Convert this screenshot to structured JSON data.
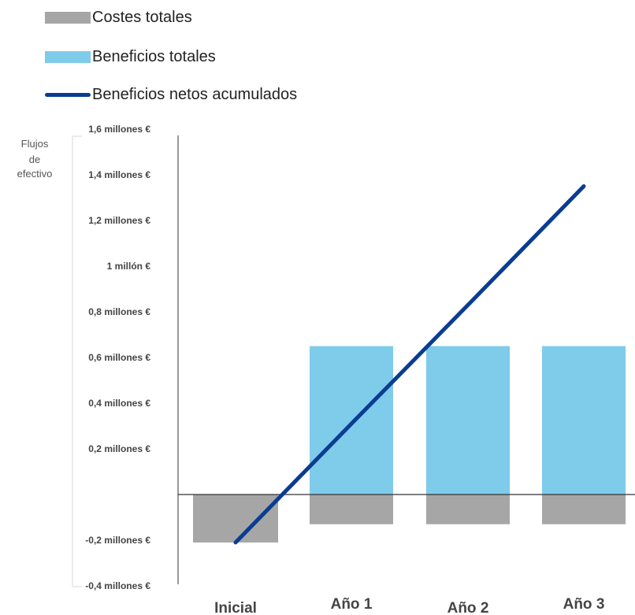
{
  "chart_data": {
    "type": "bar",
    "categories": [
      "Inicial",
      "Año 1",
      "Año 2",
      "Año 3"
    ],
    "series": [
      {
        "name": "Costes totales",
        "kind": "bar",
        "color": "#a6a6a6",
        "values": [
          -0.21,
          -0.13,
          -0.13,
          -0.13
        ]
      },
      {
        "name": "Beneficios totales",
        "kind": "bar",
        "color": "#7fcbea",
        "values": [
          0.0,
          0.65,
          0.65,
          0.65
        ]
      },
      {
        "name": "Beneficios netos acumulados",
        "kind": "line",
        "color": "#0a3d91",
        "values": [
          -0.21,
          0.31,
          0.83,
          1.35
        ]
      }
    ],
    "ylabel": [
      "Flujos",
      "de",
      "efectivo"
    ],
    "yticks": [
      {
        "value": 1.6,
        "label": "1,6 millones €"
      },
      {
        "value": 1.4,
        "label": "1,4 millones €"
      },
      {
        "value": 1.2,
        "label": "1,2 millones €"
      },
      {
        "value": 1.0,
        "label": "1 millón €"
      },
      {
        "value": 0.8,
        "label": "0,8 millones €"
      },
      {
        "value": 0.6,
        "label": "0,6 millones €"
      },
      {
        "value": 0.4,
        "label": "0,4 millones €"
      },
      {
        "value": 0.2,
        "label": "0,2 millones €"
      },
      {
        "value": -0.2,
        "label": "-0,2 millones €"
      },
      {
        "value": -0.4,
        "label": "-0,4 millones €"
      }
    ],
    "ylim": [
      -0.4,
      1.6
    ],
    "grid": false,
    "legend_position": "top-left"
  }
}
